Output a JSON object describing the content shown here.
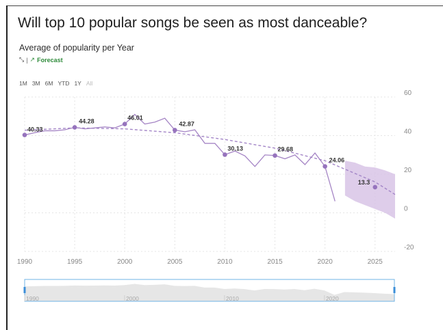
{
  "header": {
    "title": "Will top 10 popular songs be seen as most danceable?",
    "subtitle": "Average of popularity per Year",
    "trend_icon": "trend-line-icon",
    "separator": "|",
    "forecast_icon": "forecast-arrow-icon",
    "forecast_label": "Forecast"
  },
  "range_buttons": [
    {
      "label": "1M",
      "enabled": true
    },
    {
      "label": "3M",
      "enabled": true
    },
    {
      "label": "6M",
      "enabled": true
    },
    {
      "label": "YTD",
      "enabled": true
    },
    {
      "label": "1Y",
      "enabled": true
    },
    {
      "label": "All",
      "enabled": false
    }
  ],
  "colors": {
    "series": "#a585c5",
    "marker": "#9673bd",
    "band": "#d8c4e6",
    "trend": "#a385c7"
  },
  "chart_data": {
    "type": "line",
    "title": "Average of popularity per Year",
    "xlabel": "",
    "ylabel": "",
    "x_ticks": [
      "1990",
      "1995",
      "2000",
      "2005",
      "2010",
      "2015",
      "2020",
      "2025"
    ],
    "y_ticks": [
      "60",
      "40",
      "20",
      "0",
      "-20"
    ],
    "ylim": [
      -20,
      60
    ],
    "xlim": [
      1990,
      2027
    ],
    "grid": true,
    "y_axis_position": "right",
    "series": [
      {
        "x": [
          1990,
          1991,
          1992,
          1993,
          1994,
          1995,
          1996,
          1997,
          1998,
          1999,
          2000,
          2001,
          2002,
          2003,
          2004,
          2005,
          2006,
          2007,
          2008,
          2009,
          2010,
          2011,
          2012,
          2013,
          2014,
          2015,
          2016,
          2017,
          2018,
          2019,
          2020,
          2021
        ],
        "values": [
          40.33,
          41.5,
          42.5,
          42.5,
          43,
          44.28,
          43.5,
          44,
          44.5,
          44,
          46.01,
          51,
          46,
          47,
          49,
          42.87,
          42,
          43,
          36,
          36,
          30.13,
          32,
          29.5,
          24,
          30,
          29.68,
          28,
          30,
          25,
          31,
          24.06,
          6
        ]
      }
    ],
    "forecast": {
      "x": [
        2022,
        2023,
        2024,
        2025,
        2026,
        2027
      ],
      "values": [
        17.5,
        16.5,
        15,
        13.3,
        11,
        9
      ],
      "upper": [
        27,
        26,
        24,
        23.5,
        22,
        20
      ],
      "lower": [
        9,
        6,
        4,
        2,
        0,
        -3
      ]
    },
    "trend": {
      "x": [
        1990,
        1995,
        2000,
        2005,
        2010,
        2015,
        2020,
        2025,
        2027
      ],
      "values": [
        42.8,
        44,
        43.5,
        41.5,
        38,
        33.5,
        27,
        16,
        9.5
      ]
    },
    "data_labels": [
      {
        "x": 1990,
        "y": 40.33,
        "text": "40.33"
      },
      {
        "x": 1995,
        "y": 44.28,
        "text": "44.28"
      },
      {
        "x": 2000,
        "y": 46.01,
        "text": "46.01"
      },
      {
        "x": 2005,
        "y": 42.87,
        "text": "42.87"
      },
      {
        "x": 2010,
        "y": 30.13,
        "text": "30.13"
      },
      {
        "x": 2015,
        "y": 29.68,
        "text": "29.68"
      },
      {
        "x": 2020,
        "y": 24.06,
        "text": "24.06"
      },
      {
        "x": 2025,
        "y": 13.3,
        "text": "13.3"
      }
    ],
    "navigator": {
      "x_ticks": [
        "1990",
        "2000",
        "2010",
        "2020"
      ],
      "range": [
        1990,
        2027
      ]
    }
  }
}
